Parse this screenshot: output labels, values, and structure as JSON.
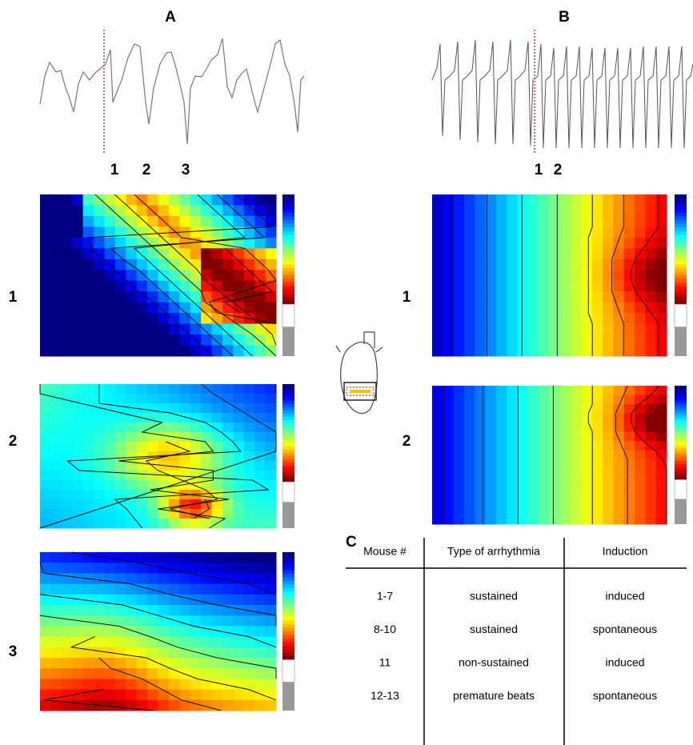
{
  "panels": {
    "a": {
      "label": "A",
      "beat_markers": [
        "1",
        "2",
        "3"
      ],
      "row_labels": [
        "1",
        "2",
        "3"
      ]
    },
    "b": {
      "label": "B",
      "beat_markers": [
        "1",
        "2"
      ],
      "row_labels": [
        "1",
        "2"
      ]
    },
    "c": {
      "label": "C"
    }
  },
  "table": {
    "header": [
      "Mouse #",
      "Type of arrhythmia",
      "Induction"
    ],
    "rows": [
      [
        "1-7",
        "sustained",
        "induced"
      ],
      [
        "8-10",
        "sustained",
        "spontaneous"
      ],
      [
        "11",
        "non-sustained",
        "induced"
      ],
      [
        "12-13",
        "premature beats",
        "spontaneous"
      ]
    ]
  }
}
